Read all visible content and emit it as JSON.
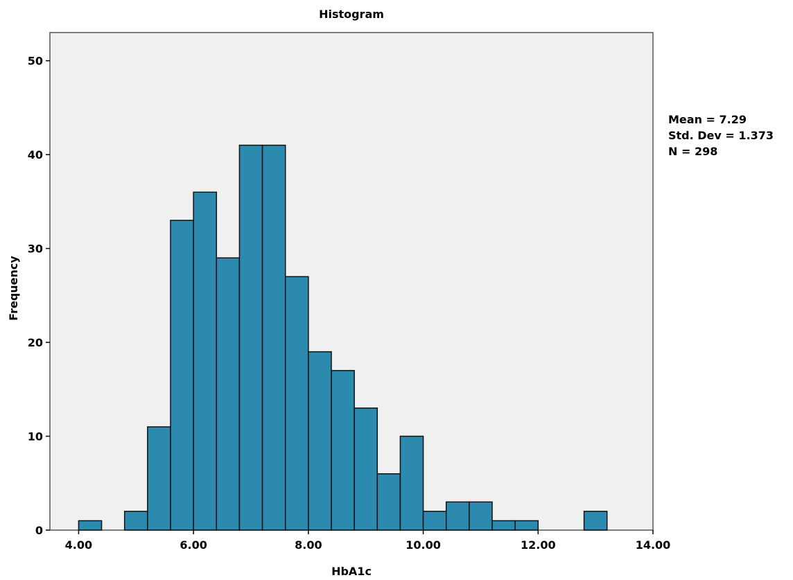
{
  "chart_data": {
    "type": "bar",
    "title": "Histogram",
    "xlabel": "HbA1c",
    "ylabel": "Frequency",
    "xlim": [
      3.5,
      14.0
    ],
    "ylim": [
      0,
      53
    ],
    "x_ticks": [
      "4.00",
      "6.00",
      "8.00",
      "10.00",
      "12.00",
      "14.00"
    ],
    "y_ticks": [
      "0",
      "10",
      "20",
      "30",
      "40",
      "50"
    ],
    "bin_width": 0.4,
    "bins": [
      {
        "start": 4.0,
        "count": 1
      },
      {
        "start": 4.8,
        "count": 2
      },
      {
        "start": 5.2,
        "count": 11
      },
      {
        "start": 5.6,
        "count": 33
      },
      {
        "start": 6.0,
        "count": 36
      },
      {
        "start": 6.4,
        "count": 29
      },
      {
        "start": 6.8,
        "count": 41
      },
      {
        "start": 7.2,
        "count": 41
      },
      {
        "start": 7.6,
        "count": 27
      },
      {
        "start": 8.0,
        "count": 19
      },
      {
        "start": 8.4,
        "count": 17
      },
      {
        "start": 8.8,
        "count": 13
      },
      {
        "start": 9.2,
        "count": 6
      },
      {
        "start": 9.6,
        "count": 10
      },
      {
        "start": 10.0,
        "count": 2
      },
      {
        "start": 10.4,
        "count": 3
      },
      {
        "start": 10.8,
        "count": 3
      },
      {
        "start": 11.2,
        "count": 1
      },
      {
        "start": 11.6,
        "count": 1
      },
      {
        "start": 12.8,
        "count": 2
      }
    ],
    "colors": {
      "bar_fill": "#2b8aad",
      "bar_stroke": "#111111",
      "plot_bg": "#f0f0f0"
    }
  },
  "stats": {
    "mean": "Mean = 7.29",
    "std_dev": "Std. Dev = 1.373",
    "n": "N = 298"
  }
}
